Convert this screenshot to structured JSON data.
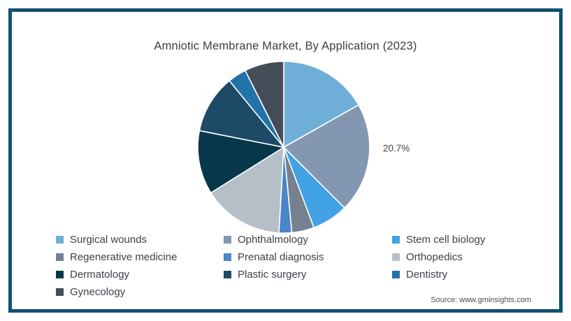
{
  "frame": {
    "border_color": "#11506E",
    "background": "#FFFFFF"
  },
  "title": "Amniotic Membrane Market, By Application (2023)",
  "source": "Source: www.gminsights.com",
  "chart_data": {
    "type": "pie",
    "title": "Amniotic Membrane Market, By Application (2023)",
    "start_angle_deg": 0,
    "direction": "clockwise",
    "series": [
      {
        "name": "Surgical wounds",
        "value": 16.8,
        "color": "#6FAED6"
      },
      {
        "name": "Ophthalmology",
        "value": 20.7,
        "color": "#8497B2"
      },
      {
        "name": "Stem cell biology",
        "value": 6.8,
        "color": "#41A2E4"
      },
      {
        "name": "Regenerative medicine",
        "value": 4.2,
        "color": "#75818F"
      },
      {
        "name": "Prenatal diagnosis",
        "value": 2.4,
        "color": "#4A86C8"
      },
      {
        "name": "Orthopedics",
        "value": 15.2,
        "color": "#B5BFC8"
      },
      {
        "name": "Dermatology",
        "value": 12.0,
        "color": "#07374A"
      },
      {
        "name": "Plastic surgery",
        "value": 11.0,
        "color": "#1D4A66"
      },
      {
        "name": "Dentistry",
        "value": 3.5,
        "color": "#2173A8"
      },
      {
        "name": "Gynecology",
        "value": 7.4,
        "color": "#454D59"
      }
    ],
    "data_labels": [
      {
        "series": "Ophthalmology",
        "text": "20.7%"
      }
    ],
    "slice_stroke_color": "#FFFFFF",
    "legend_position": "bottom",
    "legend_columns": 3
  }
}
